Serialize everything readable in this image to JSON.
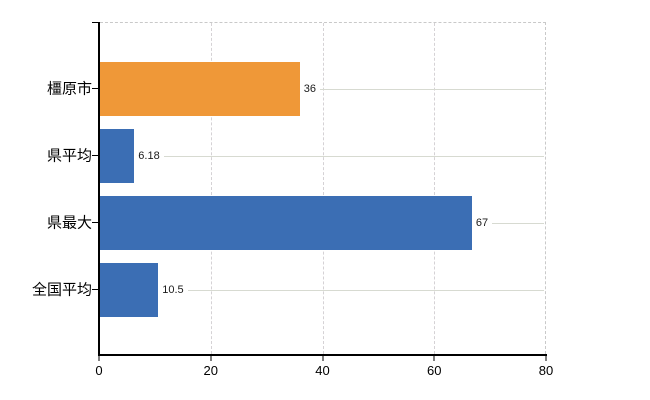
{
  "chart_data": {
    "type": "bar",
    "orientation": "horizontal",
    "title": "",
    "xlabel": "",
    "ylabel": "",
    "categories": [
      "橿原市",
      "県平均",
      "県最大",
      "全国平均"
    ],
    "values": [
      36,
      6.18,
      67,
      10.5
    ],
    "value_labels": [
      "36",
      "6.18",
      "67",
      "10.5"
    ],
    "bar_colors": [
      "#EF9838",
      "#3B6EB4",
      "#3B6EB4",
      "#3B6EB4"
    ],
    "xlim": [
      0,
      80
    ],
    "x_ticks": [
      0,
      20,
      40,
      60,
      80
    ],
    "x_tick_labels": [
      "0",
      "20",
      "40",
      "60",
      "80"
    ],
    "grid": true,
    "legend": false
  },
  "colors": {
    "highlight_bar": "#EF9838",
    "comparison_bar": "#3B6EB4",
    "axis": "#000000",
    "dashed_border": "#c9c9c9",
    "gridline": "#d5d2d5",
    "leader_line": "#d7dad1",
    "background": "#ffffff"
  }
}
